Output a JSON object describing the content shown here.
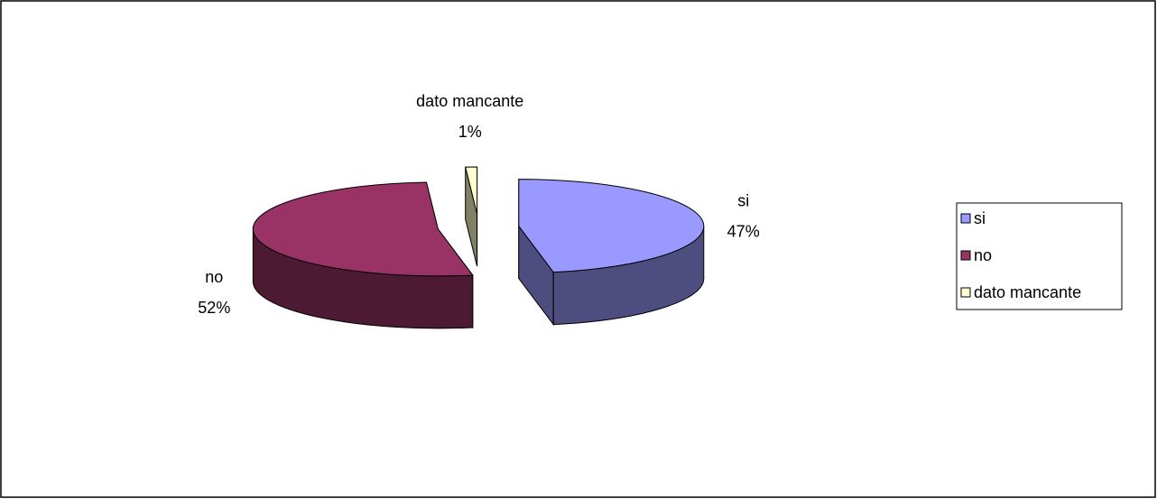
{
  "chart_data": {
    "type": "pie",
    "three_d": true,
    "exploded": true,
    "categories": [
      "si",
      "no",
      "dato mancante"
    ],
    "values": [
      47,
      52,
      1
    ],
    "value_labels": [
      "47%",
      "52%",
      "1%"
    ],
    "colors": [
      "#9999ff",
      "#993366",
      "#ffffcc"
    ],
    "legend": "right"
  }
}
